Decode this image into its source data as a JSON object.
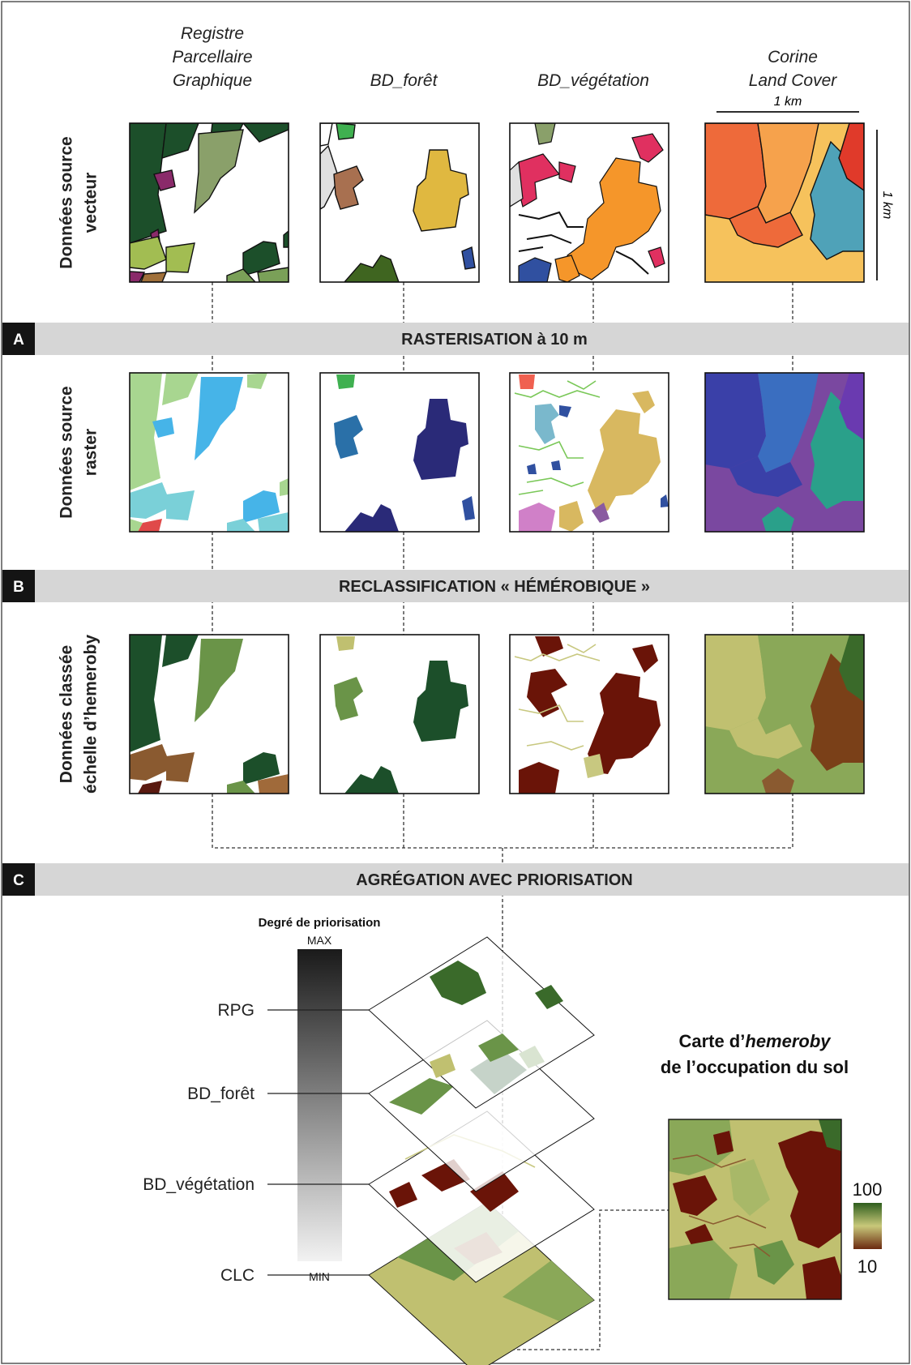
{
  "columns": [
    {
      "title_lines": [
        "Registre",
        "Parcellaire",
        "Graphique"
      ]
    },
    {
      "title_lines": [
        "BD_forêt"
      ]
    },
    {
      "title_lines": [
        "BD_végétation"
      ]
    },
    {
      "title_lines": [
        "Corine",
        "Land Cover"
      ]
    }
  ],
  "scale": {
    "horizontal": "1 km",
    "vertical": "1 km"
  },
  "rows": [
    {
      "label_lines": [
        "Données source",
        "vecteur"
      ]
    },
    {
      "label_lines": [
        "Données source",
        "raster"
      ]
    },
    {
      "label_lines": [
        "Données classée",
        "échelle d’hemeroby"
      ]
    }
  ],
  "steps": [
    {
      "letter": "A",
      "title": "RASTERISATION à 10 m"
    },
    {
      "letter": "B",
      "title": "RECLASSIFICATION « HÉMÉROBIQUE »"
    },
    {
      "letter": "C",
      "title": "AGRÉGATION AVEC PRIORISATION"
    }
  ],
  "priority": {
    "title": "Degré de priorisation",
    "max": "MAX",
    "min": "MIN"
  },
  "layers": [
    "RPG",
    "BD_forêt",
    "BD_végétation",
    "CLC"
  ],
  "result": {
    "title_line1_prefix": "Carte d’",
    "title_line1_italic": "hemeroby",
    "title_line2": "de l’occupation du sol"
  },
  "legend": {
    "max": "100",
    "min": "10",
    "colors": [
      "#2e5e1e",
      "#c8c87a",
      "#6b2a10"
    ]
  }
}
